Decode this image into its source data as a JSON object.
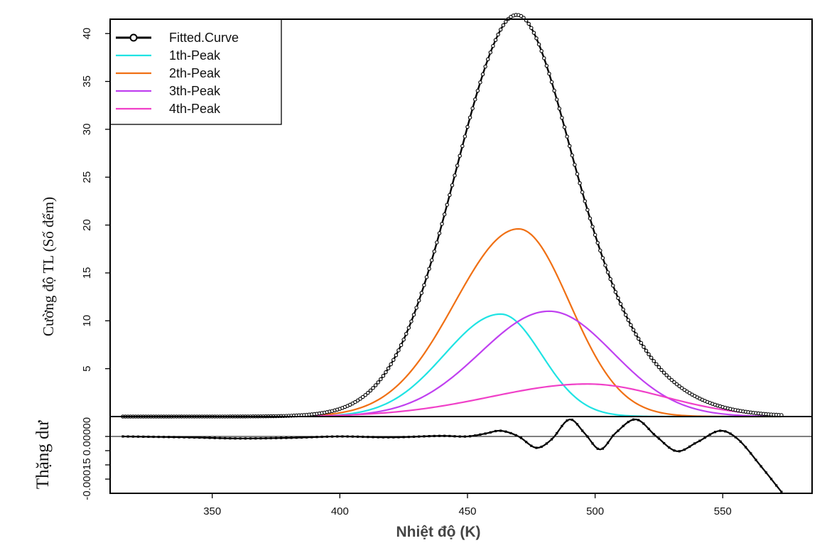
{
  "chart_data": [
    {
      "panel": "top",
      "type": "line",
      "xlabel": "",
      "ylabel": "Cường độ TL (Số đếm)",
      "xlim": [
        310,
        585
      ],
      "ylim": [
        0,
        41.5
      ],
      "yticks": [
        5,
        10,
        15,
        20,
        25,
        30,
        35,
        40
      ],
      "legend_position": "top-left",
      "series": [
        {
          "name": "Fitted.Curve",
          "color": "#000000",
          "marker": "circle",
          "model": "sum",
          "x": [
            315,
            360,
            380,
            400,
            420,
            440,
            455,
            465,
            471,
            480,
            490,
            500,
            510,
            520,
            530,
            545,
            560,
            573
          ],
          "y": [
            0.0,
            0.05,
            0.4,
            2.1,
            6.8,
            17.5,
            30.5,
            38.8,
            41.4,
            38.8,
            30.8,
            19.8,
            11.0,
            5.9,
            3.0,
            1.1,
            0.4,
            0.1
          ]
        },
        {
          "name": "1th-Peak",
          "color": "#1fe3e3",
          "model": "gauss",
          "center": 463,
          "amplitude": 10.7,
          "left_width": 22.0,
          "right_width": 16.0,
          "x": [
            380,
            420,
            440,
            463,
            480,
            500,
            520
          ],
          "y": [
            0.1,
            3.0,
            6.8,
            10.7,
            6.9,
            1.4,
            0.1
          ]
        },
        {
          "name": "2th-Peak",
          "color": "#f07014",
          "model": "gauss",
          "center": 470,
          "amplitude": 19.6,
          "left_width": 25.0,
          "right_width": 20.0,
          "x": [
            380,
            420,
            450,
            470,
            490,
            510,
            530
          ],
          "y": [
            0.1,
            3.4,
            13.0,
            19.6,
            12.0,
            2.5,
            0.2
          ]
        },
        {
          "name": "3th-Peak",
          "color": "#c040f0",
          "model": "gauss",
          "center": 482,
          "amplitude": 11.0,
          "left_width": 27.0,
          "right_width": 25.0,
          "x": [
            400,
            440,
            460,
            482,
            500,
            520,
            550,
            570
          ],
          "y": [
            0.1,
            2.4,
            7.0,
            11.0,
            8.1,
            3.5,
            0.3,
            0.0
          ]
        },
        {
          "name": "4th-Peak",
          "color": "#f040c8",
          "model": "gauss",
          "center": 497,
          "amplitude": 3.4,
          "left_width": 38.0,
          "right_width": 30.0,
          "x": [
            420,
            460,
            480,
            497,
            520,
            550,
            573
          ],
          "y": [
            0.4,
            1.5,
            2.7,
            3.4,
            2.7,
            0.8,
            0.2
          ]
        }
      ]
    },
    {
      "panel": "bottom",
      "type": "line",
      "xlabel": "Nhiệt độ (K)",
      "ylabel": "Thặng dư",
      "xlim": [
        310,
        585
      ],
      "ylim": [
        -0.0002,
        7e-05
      ],
      "xticks": [
        350,
        400,
        450,
        500,
        550
      ],
      "yticks": [
        -0.00015,
        0.0
      ],
      "ytick_labels": [
        "-0.00015",
        "0.00000"
      ],
      "reference_line": 0,
      "series": [
        {
          "name": "",
          "color": "#000000",
          "marker": "square",
          "x": [
            315,
            340,
            360,
            380,
            400,
            420,
            440,
            450,
            457,
            463,
            470,
            477,
            483,
            490,
            496,
            502,
            508,
            516,
            524,
            532,
            540,
            549,
            556,
            565,
            573
          ],
          "y": [
            0.0,
            -3e-06,
            -7e-06,
            -5e-06,
            0.0,
            -3e-06,
            2e-06,
            0.0,
            1e-05,
            2e-05,
            0.0,
            -4e-05,
            -1e-05,
            6e-05,
            1e-05,
            -4.6e-05,
            1.2e-05,
            6e-05,
            0.0,
            -5.2e-05,
            -2e-05,
            2e-05,
            -1e-05,
            -0.000105,
            -0.000195
          ]
        }
      ]
    }
  ]
}
